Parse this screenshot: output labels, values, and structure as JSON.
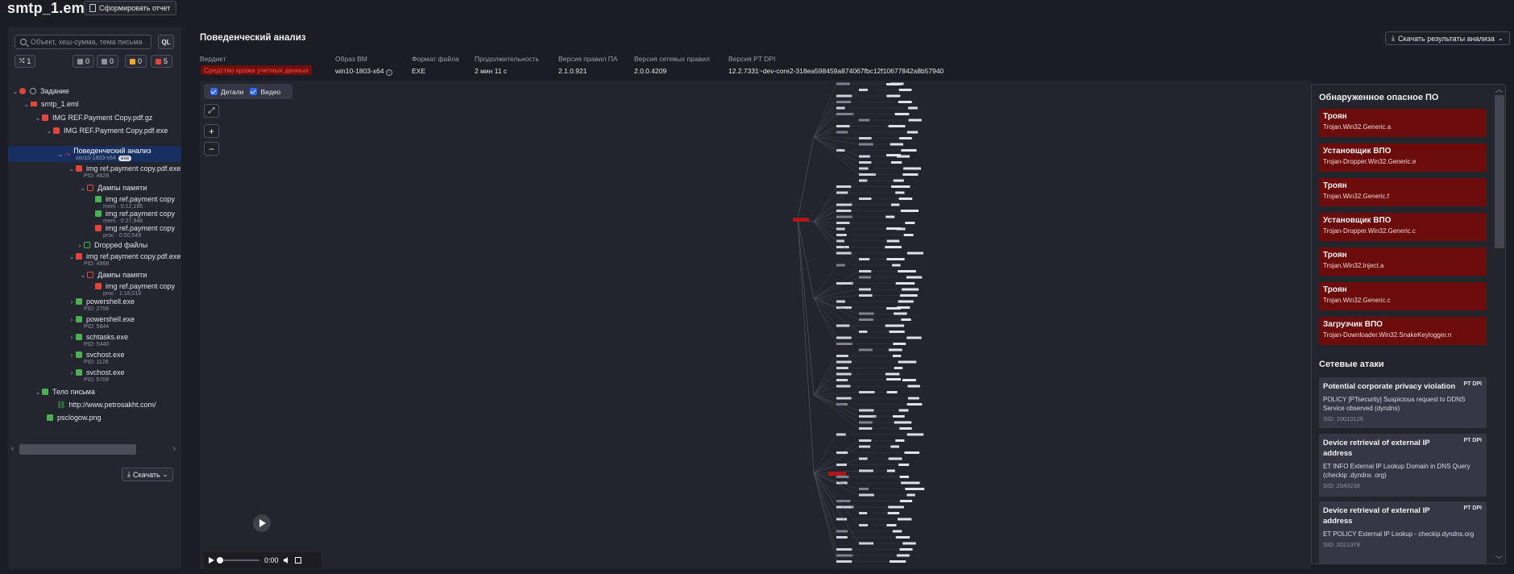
{
  "app": {
    "title": "smtp_1.eml",
    "report_button": "Сформировать отчет"
  },
  "sidebar": {
    "search_placeholder": "Объект, хеш-сумма, тема письма",
    "ql_label": "QL",
    "counters": {
      "links": "1",
      "gray": "0",
      "files": "0",
      "orange": "0",
      "red": "5"
    },
    "download_label": "Скачать",
    "tree": [
      {
        "label": "Задание",
        "sub": ""
      },
      {
        "label": "smtp_1.eml",
        "sub": ""
      },
      {
        "label": "IMG REF.Payment Copy.pdf.gz",
        "sub": ""
      },
      {
        "label": "IMG REF.Payment Copy.pdf.exe",
        "sub": ""
      },
      {
        "label": "Поведенческий анализ",
        "sub": "win10-1803-x64",
        "badge": "exe"
      },
      {
        "label": "img ref.payment copy.pdf.exe",
        "sub": "PID: 4628"
      },
      {
        "label": "Дампы памяти",
        "sub": ""
      },
      {
        "label": "img ref.payment copy",
        "sub": "mem · 0:12,195"
      },
      {
        "label": "img ref.payment copy",
        "sub": "mem · 0:27,948"
      },
      {
        "label": "img ref.payment copy",
        "sub": "proc · 0:50,549"
      },
      {
        "label": "Dropped файлы",
        "sub": ""
      },
      {
        "label": "img ref.payment copy.pdf.exe",
        "sub": "PID: 4968"
      },
      {
        "label": "Дампы памяти",
        "sub": ""
      },
      {
        "label": "img ref.payment copy",
        "sub": "proc · 1:16,019"
      },
      {
        "label": "powershell.exe",
        "sub": "PID: 2756"
      },
      {
        "label": "powershell.exe",
        "sub": "PID: 5844"
      },
      {
        "label": "schtasks.exe",
        "sub": "PID: 5440"
      },
      {
        "label": "svchost.exe",
        "sub": "PID: 1128"
      },
      {
        "label": "svchost.exe",
        "sub": "PID: 5708"
      },
      {
        "label": "Тело письма",
        "sub": ""
      },
      {
        "label": "http://www.petrosakht.com/",
        "sub": ""
      },
      {
        "label": "psclogow.png",
        "sub": ""
      }
    ]
  },
  "main": {
    "title": "Поведенческий анализ",
    "download_results": "Скачать результаты анализа",
    "meta": {
      "verdict_h": "Вердикт",
      "verdict_v": "Средство кражи учетных данных",
      "vm_h": "Образ ВМ",
      "vm_v": "win10-1803-x64",
      "fmt_h": "Формат файла",
      "fmt_v": "EXE",
      "dur_h": "Продолжительность",
      "dur_v": "2 мин 11 с",
      "rules_h": "Версия правил ПА",
      "rules_v": "2.1.0.921",
      "net_h": "Версия сетевых правил",
      "net_v": "2.0.0.4209",
      "dpi_h": "Версия PT DPI",
      "dpi_v": "12.2.7331~dev-core2-318ea598459a874067fbc12f10677842a8b57940"
    },
    "toggles": {
      "details": "Детали",
      "video": "Видео"
    },
    "video": {
      "time": "0:00"
    }
  },
  "panel": {
    "malware_title": "Обнаруженное опасное ПО",
    "malware": [
      {
        "type": "Троян",
        "name": "Trojan.Win32.Generic.a"
      },
      {
        "type": "Установщик ВПО",
        "name": "Trojan-Dropper.Win32.Generic.e"
      },
      {
        "type": "Троян",
        "name": "Trojan.Win32.Generic.f"
      },
      {
        "type": "Установщик ВПО",
        "name": "Trojan-Dropper.Win32.Generic.c"
      },
      {
        "type": "Троян",
        "name": "Trojan.Win32.Inject.a"
      },
      {
        "type": "Троян",
        "name": "Trojan.Win32.Generic.c"
      },
      {
        "type": "Загрузчик ВПО",
        "name": "Trojan-Downloader.Win32.SnakeKeylogger.n"
      }
    ],
    "network_title": "Сетевые атаки",
    "network": [
      {
        "title": "Potential corporate privacy violation",
        "badge": "PT DPI",
        "desc": "POLICY [PTsecurity] Suspicious request to DDNS Service observed (dyndns)",
        "sid": "SID: 10010126"
      },
      {
        "title": "Device retrieval of external IP address",
        "badge": "PT DPI",
        "desc": "ET INFO External IP Lookup Domain in DNS Query (checkip .dyndns .org)",
        "sid": "SID: 2043238"
      },
      {
        "title": "Device retrieval of external IP address",
        "badge": "PT DPI",
        "desc": "ET POLICY External IP Lookup - checkip.dyndns.org",
        "sid": "SID: 2021378"
      }
    ]
  },
  "colors": {
    "accent": "#2f6bff",
    "danger_bg": "#6b0b0b",
    "selected_row": "#173061",
    "bg": "#1b1d25"
  }
}
